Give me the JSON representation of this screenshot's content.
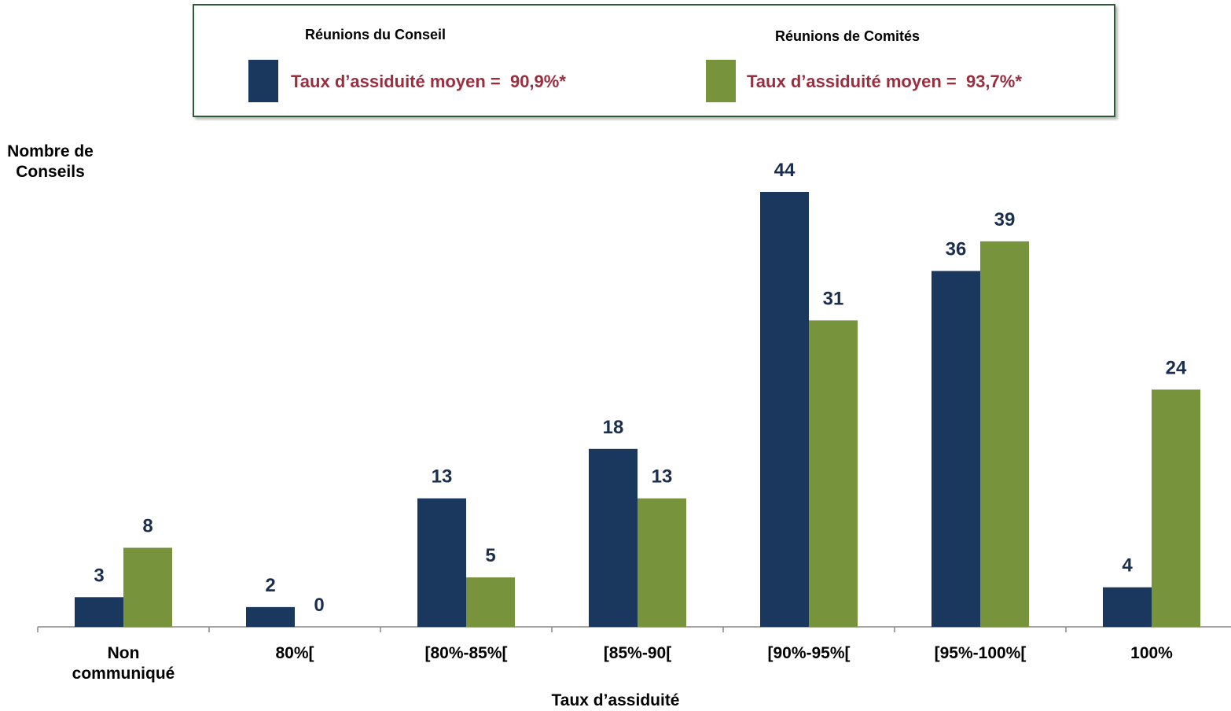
{
  "chart_data": {
    "type": "bar",
    "xlabel": "Taux d’assiduité",
    "ylabel": "Nombre de Conseils",
    "categories": [
      "Non communiqué",
      "80%[",
      "[80%-85%[",
      "[85%-90[",
      "[90%-95%[",
      "[95%-100%[",
      "100%"
    ],
    "series": [
      {
        "name": "Réunions du Conseil",
        "color": "#1a375e",
        "note": "Taux d’assiduité moyen =  90,9%*",
        "values": [
          3,
          2,
          13,
          18,
          44,
          36,
          4
        ]
      },
      {
        "name": "Réunions de Comités",
        "color": "#77933c",
        "note": "Taux d’assiduité moyen =  93,7%*",
        "values": [
          8,
          0,
          5,
          13,
          31,
          39,
          24
        ]
      }
    ]
  }
}
